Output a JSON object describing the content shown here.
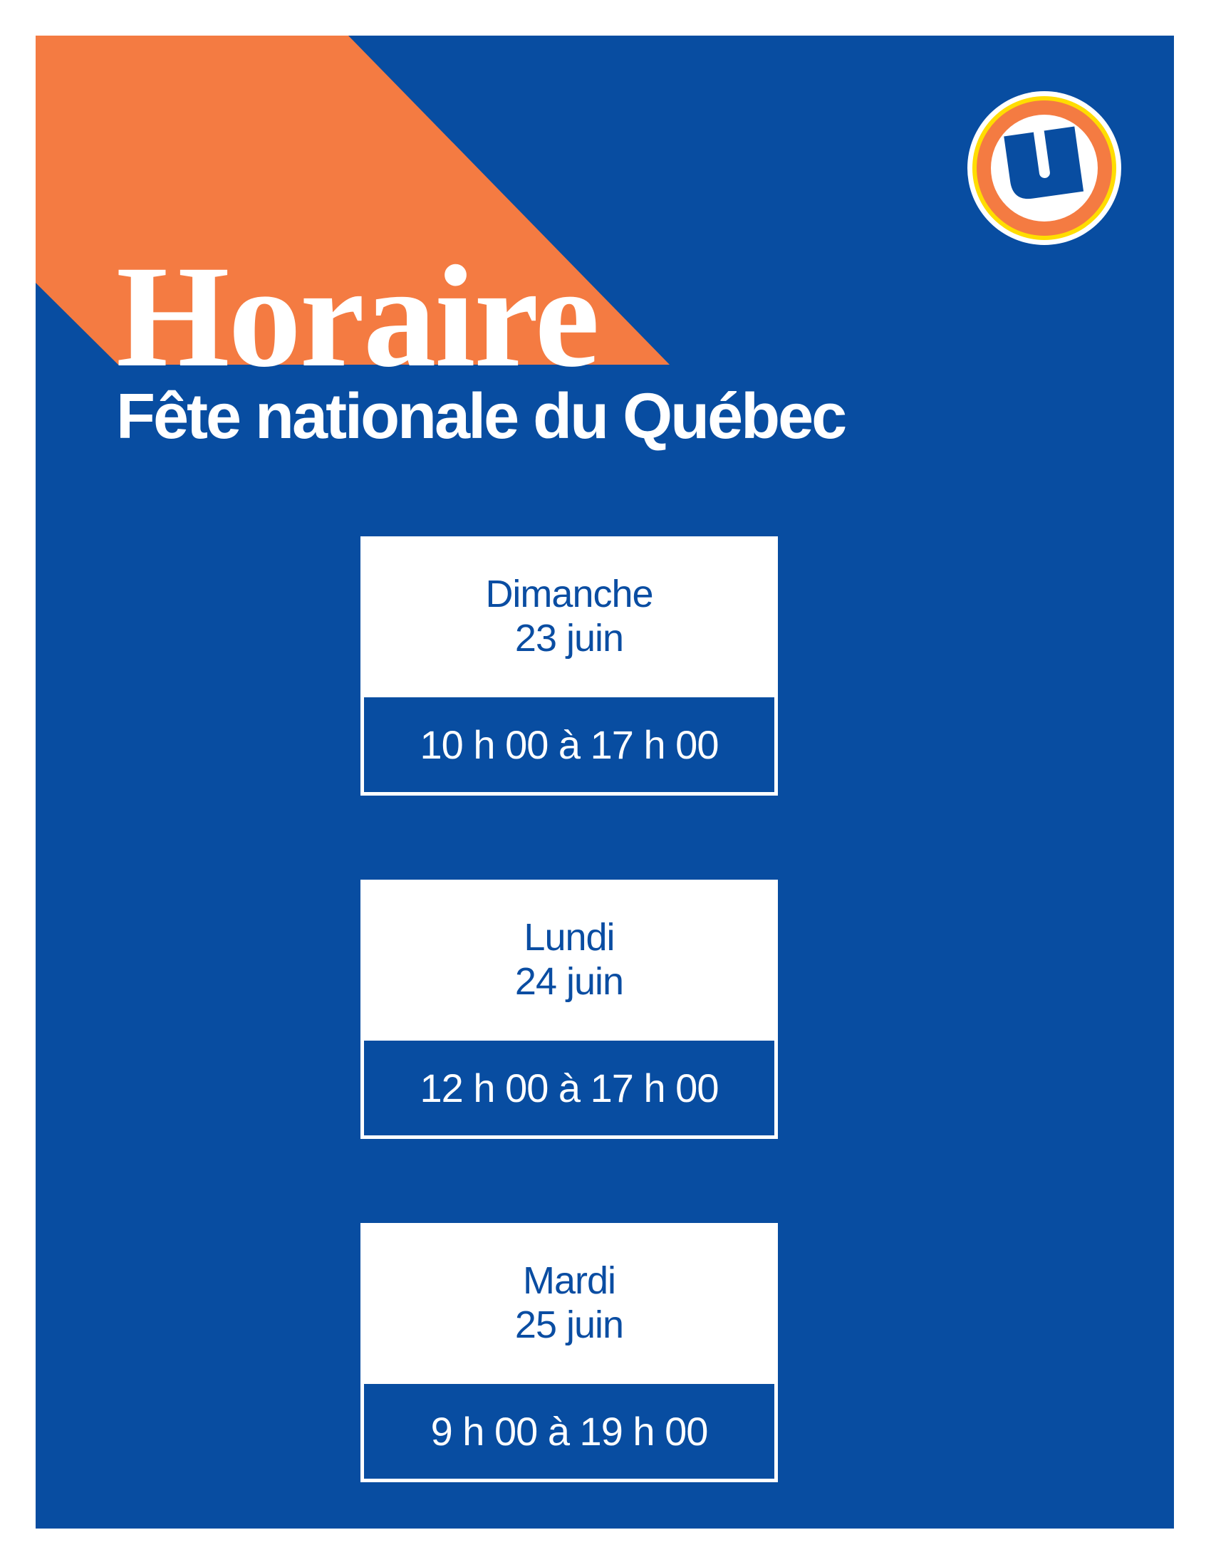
{
  "header": {
    "title": "Horaire",
    "subtitle": "Fête nationale du Québec"
  },
  "logo": {
    "icon": "u-logo-icon",
    "letter": "U"
  },
  "schedule": [
    {
      "day": "Dimanche",
      "date": "23 juin",
      "hours": "10 h 00 à 17 h 00"
    },
    {
      "day": "Lundi",
      "date": "24 juin",
      "hours": "12 h 00 à 17 h 00"
    },
    {
      "day": "Mardi",
      "date": "25 juin",
      "hours": "9 h 00 à 19 h 00"
    }
  ],
  "colors": {
    "blue": "#084da1",
    "orange": "#f47b42",
    "yellow": "#ffdd00",
    "white": "#ffffff"
  }
}
